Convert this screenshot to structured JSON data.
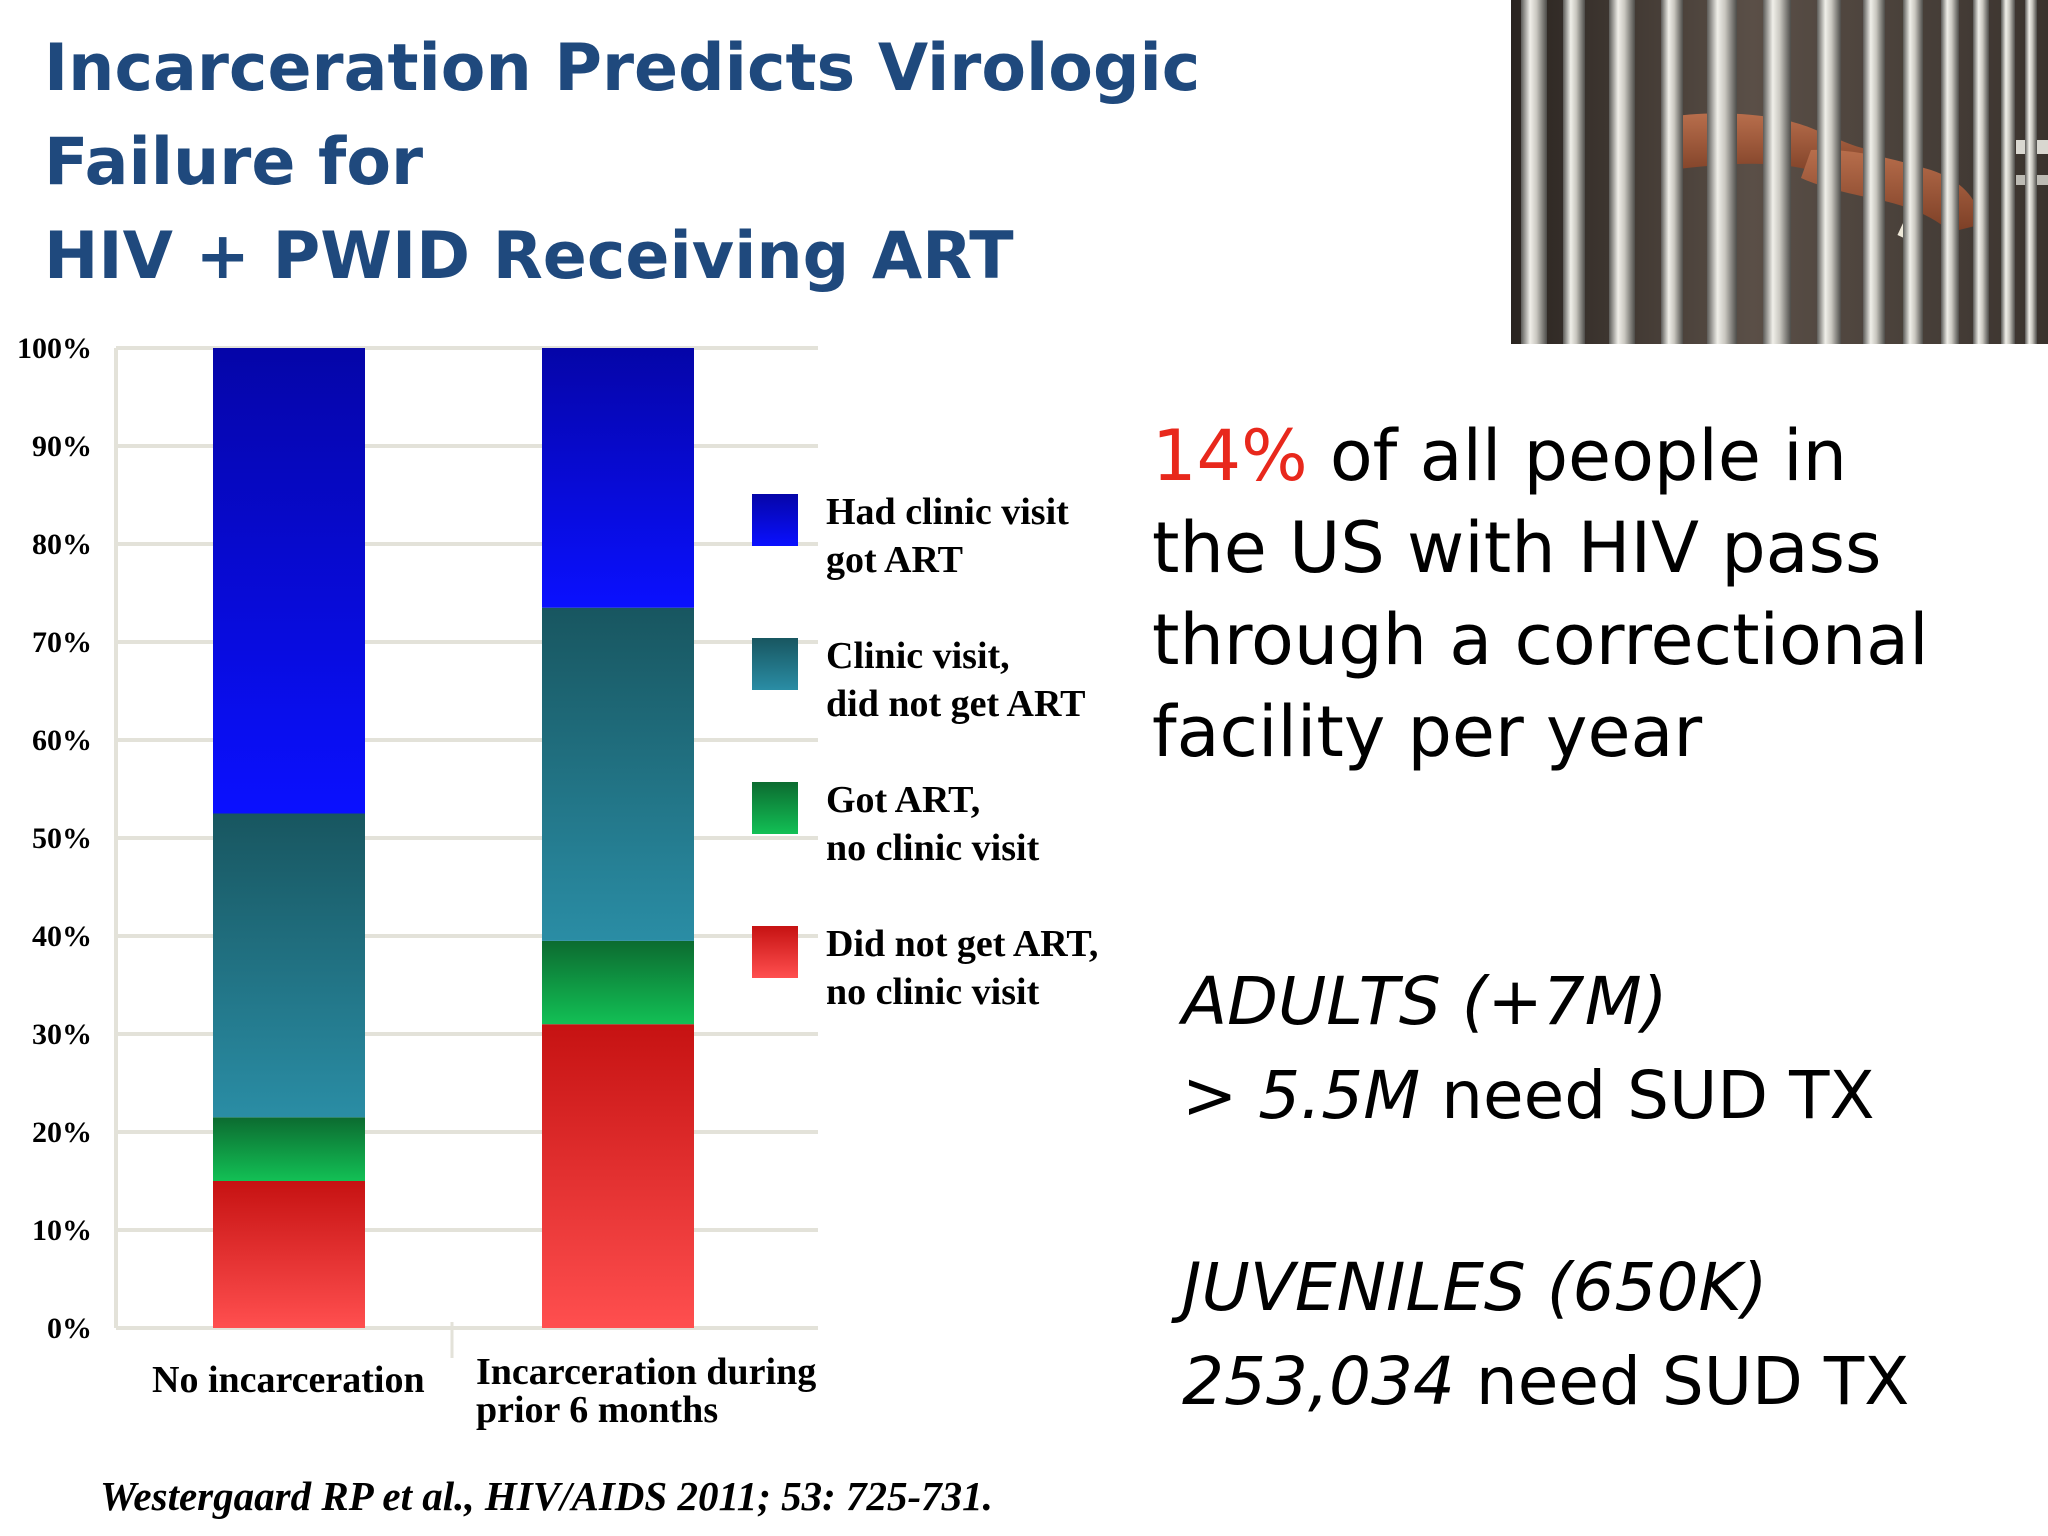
{
  "title": {
    "line1": "Incarceration Predicts Virologic",
    "line2": "Failure for",
    "line3": "HIV + PWID Receiving ART"
  },
  "image": {
    "icon": "prison-bars-hands-photo"
  },
  "chart_data": {
    "type": "bar",
    "stacked": true,
    "categories": [
      "No incarceration",
      "Incarceration during prior 6 months"
    ],
    "category_lines": [
      [
        "No incarceration"
      ],
      [
        "Incarceration during",
        "prior 6 months"
      ]
    ],
    "yticks": [
      "0%",
      "10%",
      "20%",
      "30%",
      "40%",
      "50%",
      "60%",
      "70%",
      "80%",
      "90%",
      "100%"
    ],
    "ylim": [
      0,
      100
    ],
    "grid": true,
    "legend_position": "right",
    "series": [
      {
        "name": "Did not get ART, no clinic visit",
        "label_lines": [
          "Did not get ART,",
          "no clinic visit"
        ],
        "values": [
          15,
          31
        ],
        "color_top": "#c61212",
        "color_bottom": "#ff4f4f"
      },
      {
        "name": "Got ART, no clinic visit",
        "label_lines": [
          "Got ART,",
          "no clinic visit"
        ],
        "values": [
          6.5,
          8.5
        ],
        "color_top": "#0c6b30",
        "color_bottom": "#12c055"
      },
      {
        "name": "Clinic visit, did not get ART",
        "label_lines": [
          "Clinic visit,",
          "did not get ART"
        ],
        "values": [
          31,
          34
        ],
        "color_top": "#185660",
        "color_bottom": "#2a8da5"
      },
      {
        "name": "Had clinic visit got ART",
        "label_lines": [
          "Had clinic visit",
          "got ART"
        ],
        "values": [
          47.5,
          26.5
        ],
        "color_top": "#0505a8",
        "color_bottom": "#0a10ff"
      }
    ]
  },
  "citation": "Westergaard RP et al., HIV/AIDS 2011; 53: 725-731.",
  "stat": {
    "highlight": "14%",
    "line1_rest": " of all people in",
    "line2": "the US with HIV pass",
    "line3": "through a correctional",
    "line4": "facility per year"
  },
  "adults": {
    "label": "ADULTS (+7M)",
    "count": "> 5.5M",
    "need": " need SUD TX"
  },
  "juveniles": {
    "label": "JUVENILES (650K)",
    "count": "253,034",
    "need": " need SUD TX"
  }
}
